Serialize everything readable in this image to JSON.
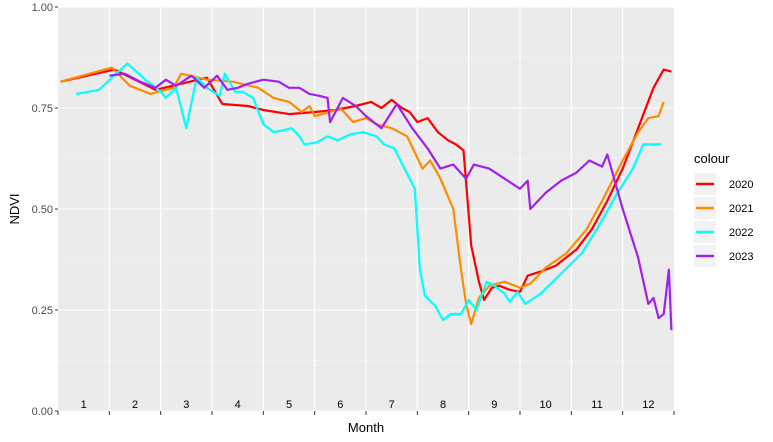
{
  "chart_data": {
    "type": "line",
    "xlabel": "Month",
    "ylabel": "NDVI",
    "ylim": [
      0,
      1
    ],
    "yticks": [
      "0.00",
      "0.25",
      "0.50",
      "0.75",
      "1.00"
    ],
    "xlim": [
      0.5,
      12.5
    ],
    "month_labels": [
      "1",
      "2",
      "3",
      "4",
      "5",
      "6",
      "7",
      "8",
      "9",
      "10",
      "11",
      "12"
    ],
    "legend": {
      "title": "colour",
      "placement": "right"
    },
    "grid": true,
    "background": "#ebebeb",
    "series": [
      {
        "name": "2020",
        "color": "#ff0000",
        "points": [
          [
            0.55,
            0.815
          ],
          [
            1.6,
            0.845
          ],
          [
            2.4,
            0.795
          ],
          [
            3.4,
            0.825
          ],
          [
            3.7,
            0.76
          ],
          [
            4.2,
            0.755
          ],
          [
            4.5,
            0.745
          ],
          [
            5.0,
            0.735
          ],
          [
            5.5,
            0.74
          ],
          [
            5.9,
            0.745
          ],
          [
            6.3,
            0.755
          ],
          [
            6.6,
            0.765
          ],
          [
            6.8,
            0.75
          ],
          [
            7.0,
            0.77
          ],
          [
            7.2,
            0.75
          ],
          [
            7.35,
            0.74
          ],
          [
            7.5,
            0.715
          ],
          [
            7.7,
            0.725
          ],
          [
            7.9,
            0.69
          ],
          [
            8.1,
            0.67
          ],
          [
            8.25,
            0.66
          ],
          [
            8.4,
            0.645
          ],
          [
            8.55,
            0.41
          ],
          [
            8.7,
            0.32
          ],
          [
            8.8,
            0.275
          ],
          [
            8.95,
            0.305
          ],
          [
            9.1,
            0.31
          ],
          [
            9.3,
            0.3
          ],
          [
            9.5,
            0.295
          ],
          [
            9.65,
            0.335
          ],
          [
            9.9,
            0.345
          ],
          [
            10.2,
            0.36
          ],
          [
            10.6,
            0.4
          ],
          [
            10.9,
            0.45
          ],
          [
            11.2,
            0.52
          ],
          [
            11.5,
            0.6
          ],
          [
            11.8,
            0.7
          ],
          [
            12.1,
            0.8
          ],
          [
            12.3,
            0.845
          ],
          [
            12.45,
            0.84
          ]
        ]
      },
      {
        "name": "2021",
        "color": "#ff8c00",
        "points": [
          [
            0.55,
            0.815
          ],
          [
            1.55,
            0.85
          ],
          [
            1.9,
            0.805
          ],
          [
            2.3,
            0.785
          ],
          [
            2.75,
            0.8
          ],
          [
            2.9,
            0.835
          ],
          [
            3.4,
            0.82
          ],
          [
            3.9,
            0.815
          ],
          [
            4.4,
            0.8
          ],
          [
            4.7,
            0.775
          ],
          [
            5.0,
            0.765
          ],
          [
            5.25,
            0.74
          ],
          [
            5.4,
            0.755
          ],
          [
            5.5,
            0.73
          ],
          [
            5.8,
            0.74
          ],
          [
            6.0,
            0.75
          ],
          [
            6.25,
            0.715
          ],
          [
            6.5,
            0.725
          ],
          [
            6.7,
            0.71
          ],
          [
            7.0,
            0.7
          ],
          [
            7.3,
            0.68
          ],
          [
            7.6,
            0.6
          ],
          [
            7.75,
            0.62
          ],
          [
            7.95,
            0.575
          ],
          [
            8.2,
            0.5
          ],
          [
            8.35,
            0.35
          ],
          [
            8.45,
            0.265
          ],
          [
            8.55,
            0.215
          ],
          [
            8.7,
            0.28
          ],
          [
            8.9,
            0.31
          ],
          [
            9.2,
            0.32
          ],
          [
            9.5,
            0.305
          ],
          [
            9.7,
            0.315
          ],
          [
            10.0,
            0.355
          ],
          [
            10.4,
            0.39
          ],
          [
            10.8,
            0.45
          ],
          [
            11.1,
            0.52
          ],
          [
            11.5,
            0.62
          ],
          [
            11.8,
            0.69
          ],
          [
            12.0,
            0.725
          ],
          [
            12.2,
            0.73
          ],
          [
            12.3,
            0.765
          ]
        ]
      },
      {
        "name": "2022",
        "color": "#00ffff",
        "points": [
          [
            0.85,
            0.785
          ],
          [
            1.3,
            0.795
          ],
          [
            1.55,
            0.825
          ],
          [
            1.85,
            0.86
          ],
          [
            2.2,
            0.82
          ],
          [
            2.5,
            0.79
          ],
          [
            2.6,
            0.775
          ],
          [
            2.8,
            0.8
          ],
          [
            3.0,
            0.7
          ],
          [
            3.2,
            0.825
          ],
          [
            3.4,
            0.8
          ],
          [
            3.65,
            0.78
          ],
          [
            3.75,
            0.835
          ],
          [
            3.95,
            0.79
          ],
          [
            4.1,
            0.79
          ],
          [
            4.3,
            0.775
          ],
          [
            4.5,
            0.71
          ],
          [
            4.7,
            0.69
          ],
          [
            4.9,
            0.695
          ],
          [
            5.05,
            0.7
          ],
          [
            5.2,
            0.68
          ],
          [
            5.3,
            0.66
          ],
          [
            5.55,
            0.665
          ],
          [
            5.75,
            0.68
          ],
          [
            5.95,
            0.67
          ],
          [
            6.2,
            0.685
          ],
          [
            6.45,
            0.69
          ],
          [
            6.7,
            0.68
          ],
          [
            6.85,
            0.66
          ],
          [
            7.05,
            0.65
          ],
          [
            7.25,
            0.6
          ],
          [
            7.45,
            0.55
          ],
          [
            7.55,
            0.35
          ],
          [
            7.65,
            0.285
          ],
          [
            7.85,
            0.26
          ],
          [
            8.0,
            0.225
          ],
          [
            8.15,
            0.24
          ],
          [
            8.35,
            0.24
          ],
          [
            8.5,
            0.275
          ],
          [
            8.65,
            0.25
          ],
          [
            8.85,
            0.32
          ],
          [
            9.0,
            0.31
          ],
          [
            9.2,
            0.29
          ],
          [
            9.3,
            0.27
          ],
          [
            9.45,
            0.295
          ],
          [
            9.6,
            0.265
          ],
          [
            9.9,
            0.29
          ],
          [
            10.3,
            0.34
          ],
          [
            10.7,
            0.39
          ],
          [
            11.0,
            0.45
          ],
          [
            11.4,
            0.54
          ],
          [
            11.7,
            0.6
          ],
          [
            11.9,
            0.66
          ],
          [
            12.1,
            0.66
          ],
          [
            12.25,
            0.66
          ]
        ]
      },
      {
        "name": "2023",
        "color": "#a020f0",
        "points": [
          [
            1.5,
            0.83
          ],
          [
            1.8,
            0.835
          ],
          [
            2.1,
            0.815
          ],
          [
            2.4,
            0.8
          ],
          [
            2.6,
            0.82
          ],
          [
            2.8,
            0.805
          ],
          [
            3.1,
            0.83
          ],
          [
            3.35,
            0.8
          ],
          [
            3.6,
            0.83
          ],
          [
            3.8,
            0.795
          ],
          [
            4.0,
            0.8
          ],
          [
            4.2,
            0.81
          ],
          [
            4.5,
            0.82
          ],
          [
            4.8,
            0.815
          ],
          [
            5.0,
            0.8
          ],
          [
            5.2,
            0.8
          ],
          [
            5.4,
            0.785
          ],
          [
            5.6,
            0.78
          ],
          [
            5.75,
            0.775
          ],
          [
            5.8,
            0.715
          ],
          [
            6.05,
            0.775
          ],
          [
            6.3,
            0.755
          ],
          [
            6.5,
            0.73
          ],
          [
            6.8,
            0.7
          ],
          [
            7.1,
            0.76
          ],
          [
            7.4,
            0.7
          ],
          [
            7.7,
            0.65
          ],
          [
            7.95,
            0.6
          ],
          [
            8.2,
            0.61
          ],
          [
            8.45,
            0.575
          ],
          [
            8.6,
            0.61
          ],
          [
            8.9,
            0.6
          ],
          [
            9.2,
            0.575
          ],
          [
            9.5,
            0.55
          ],
          [
            9.65,
            0.57
          ],
          [
            9.7,
            0.5
          ],
          [
            10.0,
            0.54
          ],
          [
            10.3,
            0.57
          ],
          [
            10.6,
            0.59
          ],
          [
            10.85,
            0.62
          ],
          [
            11.1,
            0.605
          ],
          [
            11.2,
            0.635
          ],
          [
            11.5,
            0.5
          ],
          [
            11.8,
            0.38
          ],
          [
            12.0,
            0.265
          ],
          [
            12.1,
            0.28
          ],
          [
            12.2,
            0.23
          ],
          [
            12.3,
            0.24
          ],
          [
            12.4,
            0.35
          ],
          [
            12.45,
            0.2
          ]
        ]
      }
    ]
  }
}
